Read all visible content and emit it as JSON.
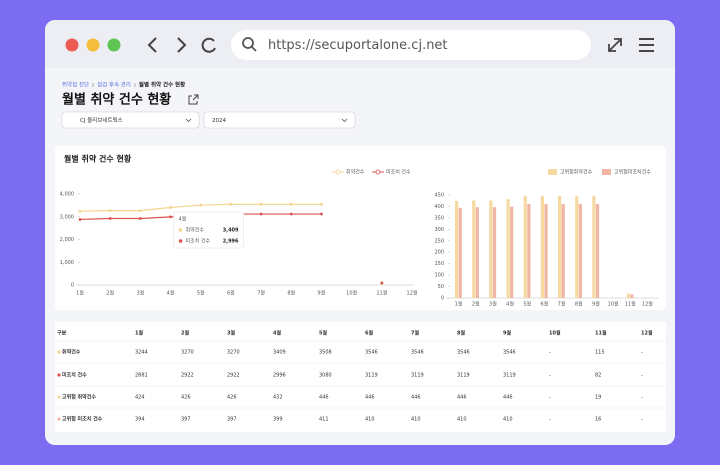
{
  "browser": {
    "url": "https://secuportalone.cj.net"
  },
  "breadcrumb": [
    "취약점 진단",
    "점검 후속 관리",
    "월별 취약 건수 현황"
  ],
  "page_title": "월별 취약 건수 현황",
  "filters": [
    "CJ 올리브네트웍스",
    "2024"
  ],
  "panel_title": "월별 취약 건수 현황",
  "chart_data": [
    {
      "type": "line",
      "categories": [
        "1월",
        "2월",
        "3월",
        "4월",
        "5월",
        "6월",
        "7월",
        "8월",
        "9월",
        "10월",
        "11월",
        "12월"
      ],
      "series": [
        {
          "name": "취약건수",
          "color": "#f3d58c",
          "values": [
            3244,
            3270,
            3270,
            3409,
            3508,
            3546,
            3546,
            3546,
            3546,
            null,
            115,
            null
          ]
        },
        {
          "name": "미조치 건수",
          "color": "#d9534f",
          "values": [
            2881,
            2922,
            2922,
            2996,
            3080,
            3119,
            3119,
            3119,
            3119,
            null,
            82,
            null
          ]
        }
      ],
      "ylim": [
        0,
        4000
      ],
      "yticks": [
        0,
        {
          "value": 1000,
          "label": "1,000"
        },
        {
          "value": 2000,
          "label": "2,000"
        },
        {
          "value": 3000,
          "label": "3,000"
        },
        {
          "value": 4000,
          "label": "4,000"
        }
      ],
      "grid": false,
      "legend": "top-right",
      "tooltip": {
        "title": "4월",
        "labels": [
          "3,409",
          "2,996"
        ]
      }
    },
    {
      "type": "bar",
      "categories": [
        "1월",
        "2월",
        "3월",
        "4월",
        "5월",
        "6월",
        "7월",
        "8월",
        "9월",
        "10월",
        "11월",
        "12월"
      ],
      "series": [
        {
          "name": "고위험취약건수",
          "color": "#f5d9a0",
          "values": [
            424,
            426,
            426,
            432,
            446,
            446,
            446,
            446,
            446,
            null,
            19,
            null
          ]
        },
        {
          "name": "고위험미조치건수",
          "color": "#f0b5a3",
          "values": [
            394,
            397,
            397,
            399,
            411,
            410,
            410,
            410,
            410,
            null,
            16,
            null
          ]
        }
      ],
      "ylim": [
        0,
        450
      ],
      "yticks": [
        0,
        50,
        100,
        150,
        200,
        250,
        300,
        350,
        400,
        450
      ],
      "grid": false,
      "legend": "top-right"
    }
  ],
  "table": {
    "header": [
      "구분",
      "1월",
      "2월",
      "3월",
      "4월",
      "5월",
      "6월",
      "7월",
      "8월",
      "9월",
      "10월",
      "11월",
      "12월"
    ],
    "rows": [
      [
        "취약건수",
        3244,
        3270,
        3270,
        3409,
        3508,
        3546,
        3546,
        3546,
        3546,
        "-",
        115,
        "-"
      ],
      [
        "미조치 건수",
        2881,
        2922,
        2922,
        2996,
        3080,
        3119,
        3119,
        3119,
        3119,
        "-",
        82,
        "-"
      ],
      [
        "고위험 취약건수",
        424,
        426,
        426,
        432,
        446,
        446,
        446,
        446,
        446,
        "-",
        19,
        "-"
      ],
      [
        "고위험 미조치 건수",
        394,
        397,
        397,
        399,
        411,
        410,
        410,
        410,
        410,
        "-",
        16,
        "-"
      ]
    ]
  }
}
